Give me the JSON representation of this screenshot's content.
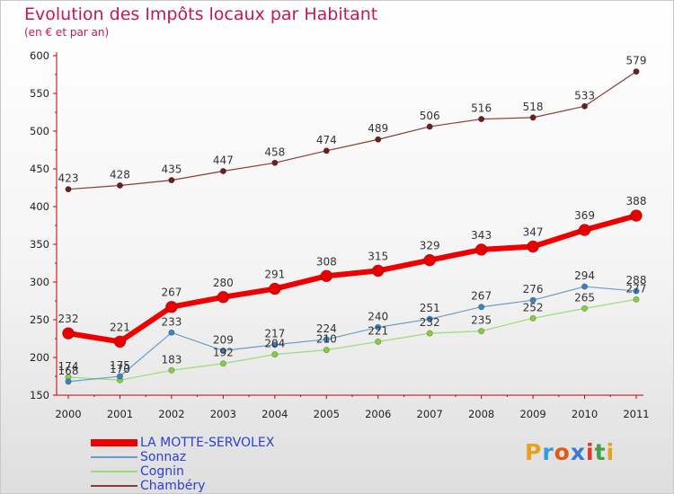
{
  "title": "Evolution des Impôts locaux par Habitant",
  "subtitle": "(en € et par an)",
  "logo": {
    "text": "Proxiti",
    "letter_colors": [
      "#e8a020",
      "#2e9fd8",
      "#e05a1a",
      "#3a7ad0",
      "#d93a2a",
      "#43a047",
      "#e8a020"
    ]
  },
  "colors": {
    "axis": "#c00000",
    "tick_text": "#222222",
    "label_text": "#333333",
    "legend_text": "#2a3fd0"
  },
  "chart_data": {
    "type": "line",
    "title": "Evolution des Impôts locaux par Habitant",
    "subtitle": "(en € et par an)",
    "xlabel": "",
    "ylabel": "",
    "x": [
      2000,
      2001,
      2002,
      2003,
      2004,
      2005,
      2006,
      2007,
      2008,
      2009,
      2010,
      2011
    ],
    "ylim": [
      150,
      600
    ],
    "yticks": [
      150,
      200,
      250,
      300,
      350,
      400,
      450,
      500,
      550,
      600
    ],
    "grid": false,
    "legend_position": "bottom-left",
    "series": [
      {
        "name": "Cognin",
        "color": "#99dd77",
        "marker_color": "#88cc44",
        "width": 1.2,
        "marker": 3.2,
        "values": [
          174,
          170,
          183,
          192,
          204,
          210,
          221,
          232,
          235,
          252,
          265,
          277
        ],
        "labels": [
          "174",
          "170",
          "183",
          "192",
          "204",
          "210",
          "221",
          "232",
          "235",
          "252",
          "265",
          "277"
        ]
      },
      {
        "name": "Sonnaz",
        "color": "#6a9cc8",
        "marker_color": "#3d80c4",
        "width": 1.2,
        "marker": 3.2,
        "values": [
          168,
          175,
          233,
          209,
          217,
          224,
          240,
          251,
          267,
          276,
          294,
          288
        ],
        "labels": [
          "168",
          "175",
          "233",
          "209",
          "217",
          "224",
          "240",
          "251",
          "267",
          "276",
          "294",
          "288"
        ]
      },
      {
        "name": "Chambéry",
        "color": "#8b3a3a",
        "marker_color": "#6b1f1f",
        "width": 1.2,
        "marker": 3.2,
        "values": [
          423,
          428,
          435,
          447,
          458,
          474,
          489,
          506,
          516,
          518,
          533,
          579
        ],
        "labels": [
          "423",
          "428",
          "435",
          "447",
          "458",
          "474",
          "489",
          "506",
          "516",
          "518",
          "533",
          "579"
        ]
      },
      {
        "name": "LA MOTTE-SERVOLEX",
        "color": "#ee0000",
        "marker_color": "#e80000",
        "width": 6,
        "marker": 6.5,
        "values": [
          232,
          221,
          267,
          280,
          291,
          308,
          315,
          329,
          343,
          347,
          369,
          388
        ],
        "labels": [
          "232",
          "221",
          "267",
          "280",
          "291",
          "308",
          "315",
          "329",
          "343",
          "347",
          "369",
          "388"
        ]
      }
    ],
    "legend": [
      "LA MOTTE-SERVOLEX",
      "Sonnaz",
      "Cognin",
      "Chambéry"
    ]
  }
}
